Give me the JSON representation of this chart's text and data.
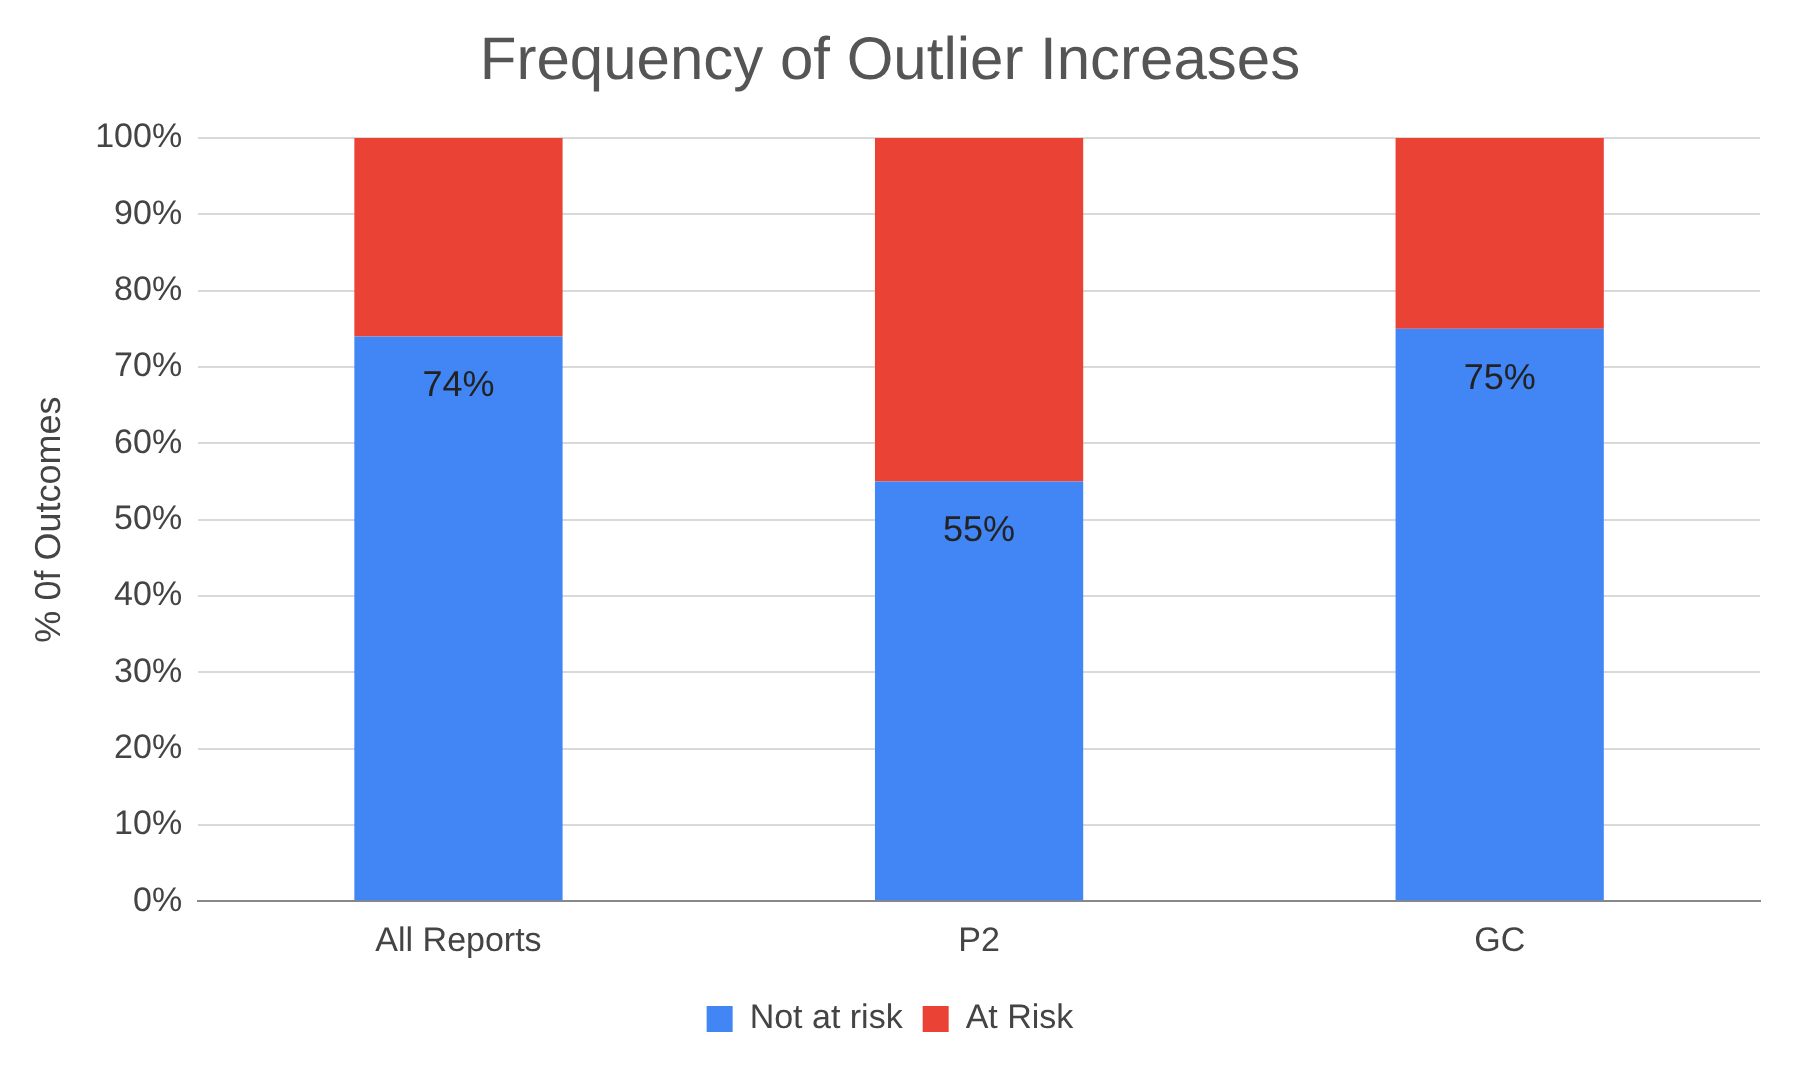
{
  "chart_data": {
    "type": "bar",
    "title": "Frequency of Outlier Increases",
    "ylabel": "% 0f Outcomes",
    "categories": [
      "All Reports",
      "P2",
      "GC"
    ],
    "stacked": true,
    "series": [
      {
        "name": "Not at risk",
        "color": "#4285f4",
        "values": [
          74,
          55,
          75
        ],
        "value_labels": [
          "74%",
          "55%",
          "75%"
        ]
      },
      {
        "name": "At Risk",
        "color": "#ea4335",
        "values": [
          26,
          45,
          25
        ]
      }
    ],
    "ylim": [
      0,
      100
    ],
    "yticks": [
      {
        "value": 0,
        "label": "0%"
      },
      {
        "value": 10,
        "label": "10%"
      },
      {
        "value": 20,
        "label": "20%"
      },
      {
        "value": 30,
        "label": "30%"
      },
      {
        "value": 40,
        "label": "40%"
      },
      {
        "value": 50,
        "label": "50%"
      },
      {
        "value": 60,
        "label": "60%"
      },
      {
        "value": 70,
        "label": "70%"
      },
      {
        "value": 80,
        "label": "80%"
      },
      {
        "value": 90,
        "label": "90%"
      },
      {
        "value": 100,
        "label": "100%"
      }
    ],
    "grid": "y",
    "legend": "bottom"
  }
}
